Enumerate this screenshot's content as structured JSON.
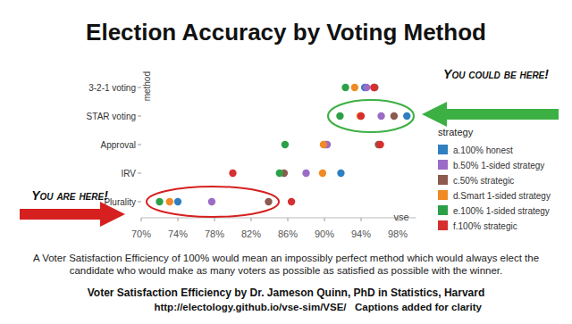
{
  "chart_data": {
    "type": "scatter",
    "title": "Election Accuracy by Voting Method",
    "x_label": "vse",
    "y_label": "method",
    "legend_title": "strategy",
    "categories": [
      "3-2-1 voting",
      "STAR voting",
      "Approval",
      "IRV",
      "Plurality"
    ],
    "series": [
      {
        "name": "a.100% honest",
        "color": "#2f7fc1",
        "values": [
          94.4,
          99.0,
          90.1,
          91.8,
          74.0
        ]
      },
      {
        "name": "b.50% 1-sided strategy",
        "color": "#9b6bc6",
        "values": [
          94.6,
          96.2,
          90.3,
          88.0,
          77.7
        ]
      },
      {
        "name": "c.50% strategic",
        "color": "#8c5a4f",
        "values": [
          95.5,
          97.6,
          95.9,
          85.6,
          83.9
        ]
      },
      {
        "name": "d.Smart 1-sided strategy",
        "color": "#f08a24",
        "values": [
          93.3,
          93.9,
          89.9,
          89.8,
          73.1
        ]
      },
      {
        "name": "e.100% 1-sided strategy",
        "color": "#2ca048",
        "values": [
          92.3,
          91.7,
          85.7,
          85.1,
          72.0
        ]
      },
      {
        "name": "f.100% strategic",
        "color": "#d62f2f",
        "values": [
          95.4,
          94.0,
          96.1,
          80.0,
          86.4
        ]
      }
    ],
    "xlim": [
      70,
      100
    ],
    "xticks": [
      {
        "value": 70,
        "label": "70%"
      },
      {
        "value": 74,
        "label": "74%"
      },
      {
        "value": 78,
        "label": "78%"
      },
      {
        "value": 82,
        "label": "82%"
      },
      {
        "value": 86,
        "label": "86%"
      },
      {
        "value": 90,
        "label": "90%"
      },
      {
        "value": 94,
        "label": "94%"
      },
      {
        "value": 98,
        "label": "98%"
      }
    ],
    "grid": false,
    "legend": "right",
    "marker": "circle",
    "annotations": [
      "You could be here!",
      "You are here!"
    ],
    "footnote": "A Voter Satisfaction Efficiency of 100% would mean an impossibly perfect method which would always elect the candidate who would make as many voters as possible as satisfied as possible with the winner.",
    "credit": "Voter Satisfaction Efficiency by Dr. Jameson Quinn, PhD in Statistics, Harvard",
    "url": "http://electology.github.io/vse-sim/VSE/",
    "credit_note": "Captions added for clarity"
  }
}
